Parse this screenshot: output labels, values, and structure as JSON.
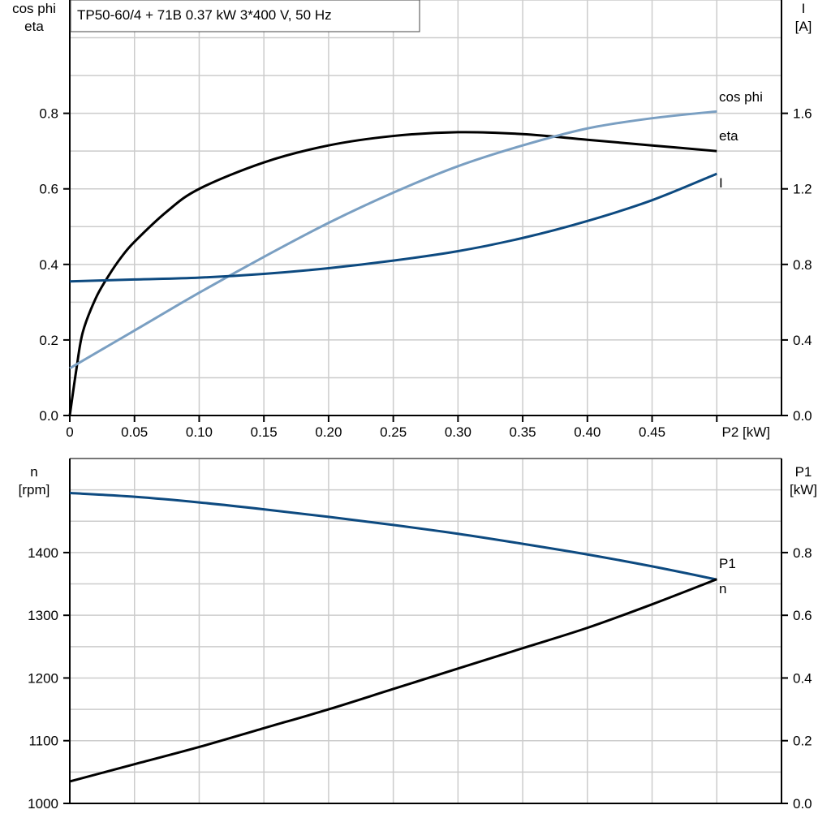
{
  "title": "TP50-60/4 + 71B   0.37 kW   3*400 V, 50 Hz",
  "colors": {
    "eta": "#000000",
    "cos_phi": "#7a9fc2",
    "I": "#0d4a80",
    "n": "#0d4a80",
    "P1": "#000000",
    "grid": "#cccccc"
  },
  "chart_data": [
    {
      "type": "line",
      "grid": true,
      "xlabel": "P2 [kW]",
      "xlim": [
        0,
        0.55
      ],
      "xticks": [
        "0",
        "0.05",
        "0.10",
        "0.15",
        "0.20",
        "0.25",
        "0.30",
        "0.35",
        "0.40",
        "0.45"
      ],
      "ylabel_left": [
        "cos phi",
        "eta"
      ],
      "ylim_left": [
        0,
        1.1
      ],
      "yticks_left": [
        "0.0",
        "0.2",
        "0.4",
        "0.6",
        "0.8"
      ],
      "ylabel_right": [
        "I",
        "[A]"
      ],
      "ylim_right": [
        0,
        2.2
      ],
      "yticks_right": [
        "0.0",
        "0.4",
        "0.8",
        "1.2",
        "1.6"
      ],
      "series": [
        {
          "name": "eta",
          "axis": "left",
          "x": [
            0,
            0.005,
            0.01,
            0.02,
            0.03,
            0.04,
            0.05,
            0.075,
            0.1,
            0.15,
            0.2,
            0.25,
            0.3,
            0.35,
            0.4,
            0.45,
            0.5
          ],
          "y": [
            0,
            0.12,
            0.22,
            0.31,
            0.37,
            0.42,
            0.46,
            0.54,
            0.6,
            0.67,
            0.715,
            0.74,
            0.75,
            0.745,
            0.73,
            0.715,
            0.7
          ]
        },
        {
          "name": "cos phi",
          "axis": "left",
          "x": [
            0,
            0.05,
            0.1,
            0.15,
            0.2,
            0.25,
            0.3,
            0.35,
            0.4,
            0.45,
            0.5
          ],
          "y": [
            0.125,
            0.225,
            0.325,
            0.42,
            0.51,
            0.59,
            0.66,
            0.715,
            0.76,
            0.787,
            0.805
          ]
        },
        {
          "name": "I",
          "axis": "right",
          "x": [
            0,
            0.05,
            0.1,
            0.15,
            0.2,
            0.25,
            0.3,
            0.35,
            0.4,
            0.45,
            0.5
          ],
          "y": [
            0.71,
            0.72,
            0.73,
            0.75,
            0.78,
            0.82,
            0.87,
            0.94,
            1.03,
            1.14,
            1.28
          ]
        }
      ]
    },
    {
      "type": "line",
      "grid": true,
      "xlim": [
        0,
        0.55
      ],
      "ylabel_left": [
        "n",
        "[rpm]"
      ],
      "ylim_left": [
        1000,
        1550
      ],
      "yticks_left": [
        "1000",
        "1100",
        "1200",
        "1300",
        "1400"
      ],
      "ylabel_right": [
        "P1",
        "[kW]"
      ],
      "ylim_right": [
        0,
        1.1
      ],
      "yticks_right": [
        "0.0",
        "0.2",
        "0.4",
        "0.6",
        "0.8"
      ],
      "series": [
        {
          "name": "n",
          "axis": "left",
          "x": [
            0,
            0.05,
            0.1,
            0.15,
            0.2,
            0.25,
            0.3,
            0.35,
            0.4,
            0.45,
            0.5
          ],
          "y": [
            1495,
            1489,
            1480,
            1469,
            1457,
            1444,
            1430,
            1414,
            1397,
            1378,
            1357
          ]
        },
        {
          "name": "P1",
          "axis": "right",
          "x": [
            0,
            0.05,
            0.1,
            0.15,
            0.2,
            0.25,
            0.3,
            0.35,
            0.4,
            0.45,
            0.5
          ],
          "y": [
            0.07,
            0.125,
            0.18,
            0.24,
            0.3,
            0.365,
            0.43,
            0.495,
            0.56,
            0.635,
            0.715
          ]
        }
      ]
    }
  ]
}
